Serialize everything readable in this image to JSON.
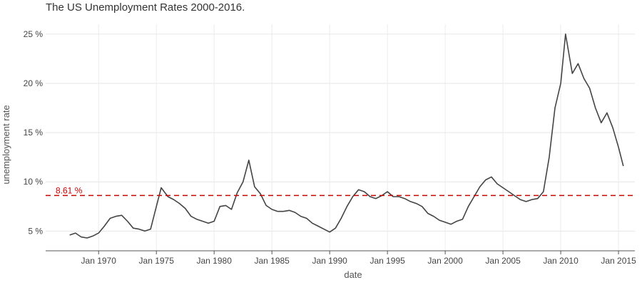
{
  "chart_data": {
    "type": "line",
    "title": "The US Unemployment Rates 2000-2016.",
    "xlabel": "date",
    "ylabel": "unemployment rate",
    "xlim": [
      "1965-06",
      "2016-06"
    ],
    "ylim": [
      3,
      26
    ],
    "x_tick_labels": [
      "Jan 1970",
      "Jan 1975",
      "Jan 1980",
      "Jan 1985",
      "Jan 1990",
      "Jan 1995",
      "Jan 2000",
      "Jan 2005",
      "Jan 2010",
      "Jan 2015"
    ],
    "y_tick_labels": [
      "5 %",
      "10 %",
      "15 %",
      "20 %",
      "25 %"
    ],
    "y_ticks": [
      5,
      10,
      15,
      20,
      25
    ],
    "grid": true,
    "reference_line": {
      "value": 8.61,
      "label": "8.61 %",
      "color": "#cc0000"
    },
    "series": [
      {
        "color": "#444444",
        "x": [
          "1967-07",
          "1968-01",
          "1968-07",
          "1969-01",
          "1969-07",
          "1970-01",
          "1970-07",
          "1971-01",
          "1971-07",
          "1972-01",
          "1972-07",
          "1973-01",
          "1973-07",
          "1974-01",
          "1974-07",
          "1975-01",
          "1975-06",
          "1976-01",
          "1976-07",
          "1977-01",
          "1977-07",
          "1978-01",
          "1978-07",
          "1979-01",
          "1979-07",
          "1980-01",
          "1980-07",
          "1981-01",
          "1981-07",
          "1982-01",
          "1982-07",
          "1983-01",
          "1983-07",
          "1984-01",
          "1984-07",
          "1985-01",
          "1985-07",
          "1986-01",
          "1986-07",
          "1987-01",
          "1987-07",
          "1988-01",
          "1988-07",
          "1989-01",
          "1989-07",
          "1990-01",
          "1990-07",
          "1991-01",
          "1991-07",
          "1992-01",
          "1992-07",
          "1993-01",
          "1993-07",
          "1994-01",
          "1994-07",
          "1995-01",
          "1995-07",
          "1996-01",
          "1996-07",
          "1997-01",
          "1997-07",
          "1998-01",
          "1998-07",
          "1999-01",
          "1999-07",
          "2000-01",
          "2000-07",
          "2001-01",
          "2001-07",
          "2002-01",
          "2002-07",
          "2003-01",
          "2003-07",
          "2004-01",
          "2004-07",
          "2005-01",
          "2005-07",
          "2006-01",
          "2006-07",
          "2007-01",
          "2007-07",
          "2008-01",
          "2008-07",
          "2009-01",
          "2009-07",
          "2010-01",
          "2010-06",
          "2011-01",
          "2011-07",
          "2012-01",
          "2012-07",
          "2013-01",
          "2013-07",
          "2014-01",
          "2014-07",
          "2015-01",
          "2015-06"
        ],
        "y": [
          4.6,
          4.8,
          4.4,
          4.3,
          4.5,
          4.8,
          5.5,
          6.3,
          6.5,
          6.6,
          6.0,
          5.3,
          5.2,
          5.0,
          5.2,
          7.5,
          9.4,
          8.5,
          8.2,
          7.8,
          7.3,
          6.5,
          6.2,
          6.0,
          5.8,
          6.0,
          7.5,
          7.6,
          7.2,
          8.9,
          10.0,
          12.2,
          9.5,
          8.8,
          7.6,
          7.2,
          7.0,
          7.0,
          7.1,
          6.9,
          6.5,
          6.3,
          5.8,
          5.5,
          5.2,
          4.9,
          5.3,
          6.3,
          7.5,
          8.5,
          9.2,
          9.0,
          8.5,
          8.3,
          8.6,
          9.0,
          8.5,
          8.5,
          8.3,
          8.0,
          7.8,
          7.5,
          6.8,
          6.5,
          6.1,
          5.9,
          5.7,
          6.0,
          6.2,
          7.5,
          8.5,
          9.5,
          10.2,
          10.5,
          9.8,
          9.4,
          9.0,
          8.6,
          8.2,
          8.0,
          8.2,
          8.3,
          9.0,
          12.5,
          17.5,
          20.0,
          25.0,
          21.0,
          22.0,
          20.5,
          19.5,
          17.5,
          16.0,
          17.0,
          15.5,
          13.5,
          11.6
        ]
      }
    ]
  }
}
